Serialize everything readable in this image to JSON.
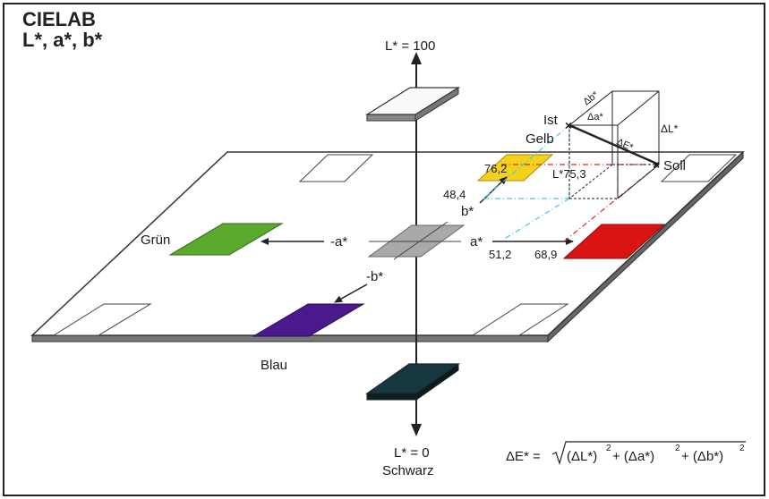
{
  "title_line1": "CIELAB",
  "title_line2": "L*, a*, b*",
  "labels": {
    "l100": "L* = 100",
    "l0": "L* = 0",
    "schwarz": "Schwarz",
    "gruen": "Grün",
    "blau": "Blau",
    "neg_a": "-a*",
    "pos_a": "a*",
    "neg_b": "-b*",
    "pos_b": "b*",
    "ist": "Ist",
    "gelb": "Gelb",
    "soll": "Soll",
    "val_762": "76,2",
    "val_484": "48,4",
    "val_753": "L*75,3",
    "val_512": "51,2",
    "val_689": "68,9",
    "d_b": "Δb*",
    "d_a": "Δa*",
    "d_e": "ΔE*",
    "d_l": "ΔL*",
    "formula_lhs": "ΔE* =",
    "formula_t1": "(ΔL*)",
    "formula_t2": "+ (Δa*)",
    "formula_t3": "+ (Δb*)",
    "sq": "2"
  },
  "colors": {
    "green": "#5aaa2e",
    "blue": "#4a1a8c",
    "yellow": "#f2d21a",
    "red": "#d81414",
    "gray": "#a9a9a9",
    "black": "#163840",
    "cyan_dash": "#4ec3e0",
    "red_dash": "#e02828"
  }
}
